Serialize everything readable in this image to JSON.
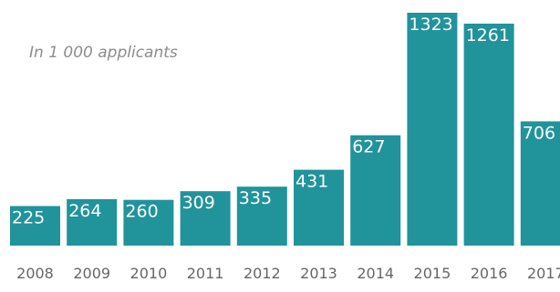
{
  "colors": {
    "bar": "#21939b",
    "label": "#ffffff",
    "axis_text": "#666666",
    "subtitle": "#8c8c8c"
  },
  "chart_data": {
    "type": "bar",
    "subtitle": "In 1 000 applicants",
    "categories": [
      "2008",
      "2009",
      "2010",
      "2011",
      "2012",
      "2013",
      "2014",
      "2015",
      "2016",
      "2017"
    ],
    "series": [
      {
        "values": [
          225,
          264,
          260,
          309,
          335,
          431,
          627,
          1323,
          1261,
          706
        ]
      }
    ],
    "data_labels": [
      "225",
      "264",
      "260",
      "309",
      "335",
      "431",
      "627",
      "1323",
      "1261",
      "706"
    ],
    "ylim": [
      0,
      1323
    ],
    "grid": false,
    "legend": "none"
  }
}
